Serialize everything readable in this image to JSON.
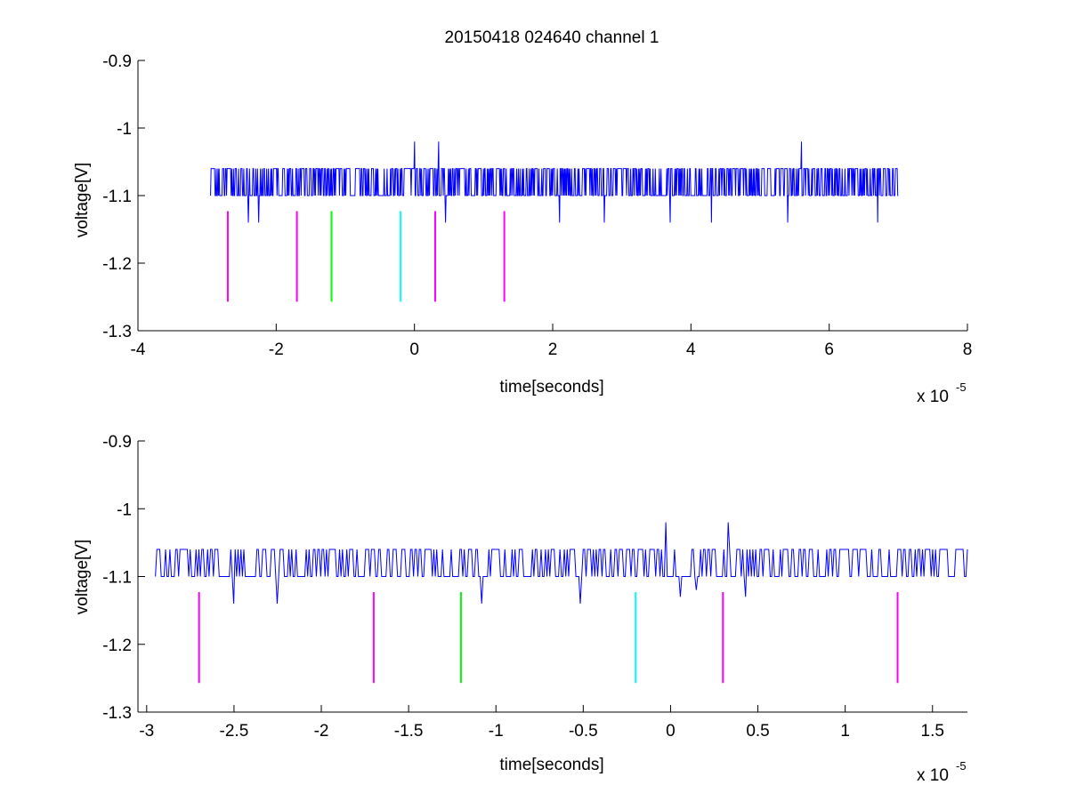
{
  "figure_title": "20150418 024640 channel 1",
  "chart_data": [
    {
      "type": "line",
      "title": "20150418 024640 channel 1",
      "xlabel": "time[seconds]",
      "ylabel": "voltage[V]",
      "x_exponent_label": "x 10",
      "x_exponent": "-5",
      "xlim": [
        -4,
        8
      ],
      "ylim": [
        -1.3,
        -0.9
      ],
      "xticks": [
        -4,
        -2,
        0,
        2,
        4,
        6,
        8
      ],
      "xtick_labels": [
        "-4",
        "-2",
        "0",
        "2",
        "4",
        "6",
        "8"
      ],
      "yticks": [
        -1.3,
        -1.2,
        -1.1,
        -1.0,
        -0.9
      ],
      "ytick_labels": [
        "-1.3",
        "-1.2",
        "-1.1",
        "-1",
        "-0.9"
      ],
      "grid": false,
      "signal": {
        "color": "#0000ff",
        "x_start": -2.95,
        "x_end": 7.0,
        "baseline": -1.1,
        "upper_level": -1.06,
        "spikes_up": [
          [
            0.0,
            -1.02
          ],
          [
            0.35,
            -1.02
          ],
          [
            5.6,
            -1.02
          ]
        ],
        "dips": [
          [
            -2.4,
            -1.14
          ],
          [
            -2.25,
            -1.14
          ],
          [
            0.45,
            -1.14
          ],
          [
            2.1,
            -1.14
          ],
          [
            2.75,
            -1.14
          ],
          [
            3.7,
            -1.14
          ],
          [
            4.3,
            -1.14
          ],
          [
            5.4,
            -1.14
          ],
          [
            6.7,
            -1.14
          ]
        ]
      },
      "markers": [
        {
          "x": -2.7,
          "color": "#ff00ff"
        },
        {
          "x": -1.7,
          "color": "#ff00ff"
        },
        {
          "x": -1.2,
          "color": "#00ff00"
        },
        {
          "x": -0.2,
          "color": "#00ffff"
        },
        {
          "x": 0.3,
          "color": "#ff00ff"
        },
        {
          "x": 1.3,
          "color": "#ff00ff"
        }
      ],
      "marker_range": [
        -1.257,
        -1.123
      ]
    },
    {
      "type": "line",
      "title": "",
      "xlabel": "time[seconds]",
      "ylabel": "voltage[V]",
      "x_exponent_label": "x 10",
      "x_exponent": "-5",
      "xlim": [
        -3.05,
        1.7
      ],
      "ylim": [
        -1.3,
        -0.9
      ],
      "xticks": [
        -3,
        -2.5,
        -2,
        -1.5,
        -1,
        -0.5,
        0,
        0.5,
        1,
        1.5
      ],
      "xtick_labels": [
        "-3",
        "-2.5",
        "-2",
        "-1.5",
        "-1",
        "-0.5",
        "0",
        "0.5",
        "1",
        "1.5"
      ],
      "yticks": [
        -1.3,
        -1.2,
        -1.1,
        -1.0,
        -0.9
      ],
      "ytick_labels": [
        "-1.3",
        "-1.2",
        "-1.1",
        "-1",
        "-0.9"
      ],
      "grid": false,
      "signal": {
        "color": "#0000ff",
        "x_start": -2.95,
        "x_end": 1.7,
        "baseline": -1.1,
        "upper_level": -1.06,
        "spikes_up": [
          [
            -0.03,
            -1.02
          ],
          [
            0.33,
            -1.02
          ]
        ],
        "dips": [
          [
            -2.5,
            -1.14
          ],
          [
            -2.25,
            -1.14
          ],
          [
            -1.08,
            -1.14
          ],
          [
            -0.52,
            -1.14
          ],
          [
            0.06,
            -1.13
          ],
          [
            0.15,
            -1.12
          ],
          [
            0.43,
            -1.13
          ]
        ]
      },
      "markers": [
        {
          "x": -2.7,
          "color": "#ff00ff"
        },
        {
          "x": -1.7,
          "color": "#ff00ff"
        },
        {
          "x": -1.2,
          "color": "#00ff00"
        },
        {
          "x": -0.2,
          "color": "#00ffff"
        },
        {
          "x": 0.3,
          "color": "#ff00ff"
        },
        {
          "x": 1.3,
          "color": "#ff00ff"
        }
      ],
      "marker_range": [
        -1.257,
        -1.123
      ]
    }
  ]
}
